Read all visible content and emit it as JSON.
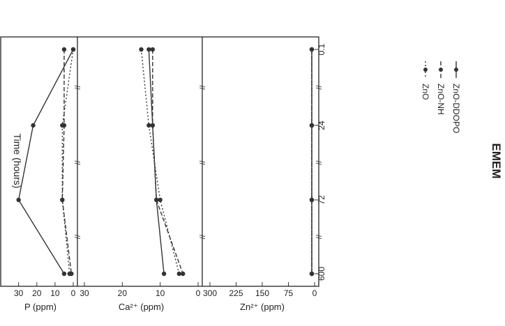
{
  "chart_data": {
    "type": "line",
    "title": "EMEM",
    "xlabel": "Time (hours)",
    "x_ticks": [
      "0.1",
      "24",
      "72",
      "600"
    ],
    "x": [
      0.1,
      24,
      72,
      600
    ],
    "axis_break": "//",
    "grid": false,
    "legend_placement": "inside top panel, near 0.1–24 h",
    "panels": [
      {
        "ylabel": "Zn²⁺ (ppm)",
        "ylim": [
          0,
          300
        ],
        "yticks": [
          "0",
          "75",
          "150",
          "225",
          "300"
        ],
        "series": [
          {
            "name": "ZnO",
            "values": [
              8,
              8,
              8,
              8
            ]
          },
          {
            "name": "ZnO-NH",
            "values": [
              8,
              8,
              8,
              8
            ]
          },
          {
            "name": "ZnO-DDOPO",
            "values": [
              8,
              8,
              8,
              8
            ]
          }
        ]
      },
      {
        "ylabel": "Ca²⁺ (ppm)",
        "ylim": [
          0,
          30
        ],
        "yticks": [
          "0",
          "10",
          "20",
          "30"
        ],
        "series": [
          {
            "name": "ZnO",
            "values": [
              15,
              13,
              10,
              5
            ]
          },
          {
            "name": "ZnO-NH",
            "values": [
              12,
              12,
              11,
              4
            ]
          },
          {
            "name": "ZnO-DDOPO",
            "values": [
              13,
              12,
              11,
              9
            ]
          }
        ]
      },
      {
        "ylabel": "P (ppm)",
        "ylim": [
          0,
          36
        ],
        "yticks": [
          "0",
          "10",
          "20",
          "30"
        ],
        "series": [
          {
            "name": "ZnO",
            "values": [
              0,
              6,
              6,
              2
            ]
          },
          {
            "name": "ZnO-NH",
            "values": [
              5,
              5,
              6,
              1
            ]
          },
          {
            "name": "ZnO-DDOPO",
            "values": [
              0,
              22,
              30,
              5
            ]
          }
        ]
      }
    ]
  },
  "styles": {
    "ZnO": {
      "dash": "2 3",
      "color": "#333333"
    },
    "ZnO-NH": {
      "dash": "6 3",
      "color": "#333333"
    },
    "ZnO-DDOPO": {
      "dash": "",
      "color": "#333333"
    }
  }
}
